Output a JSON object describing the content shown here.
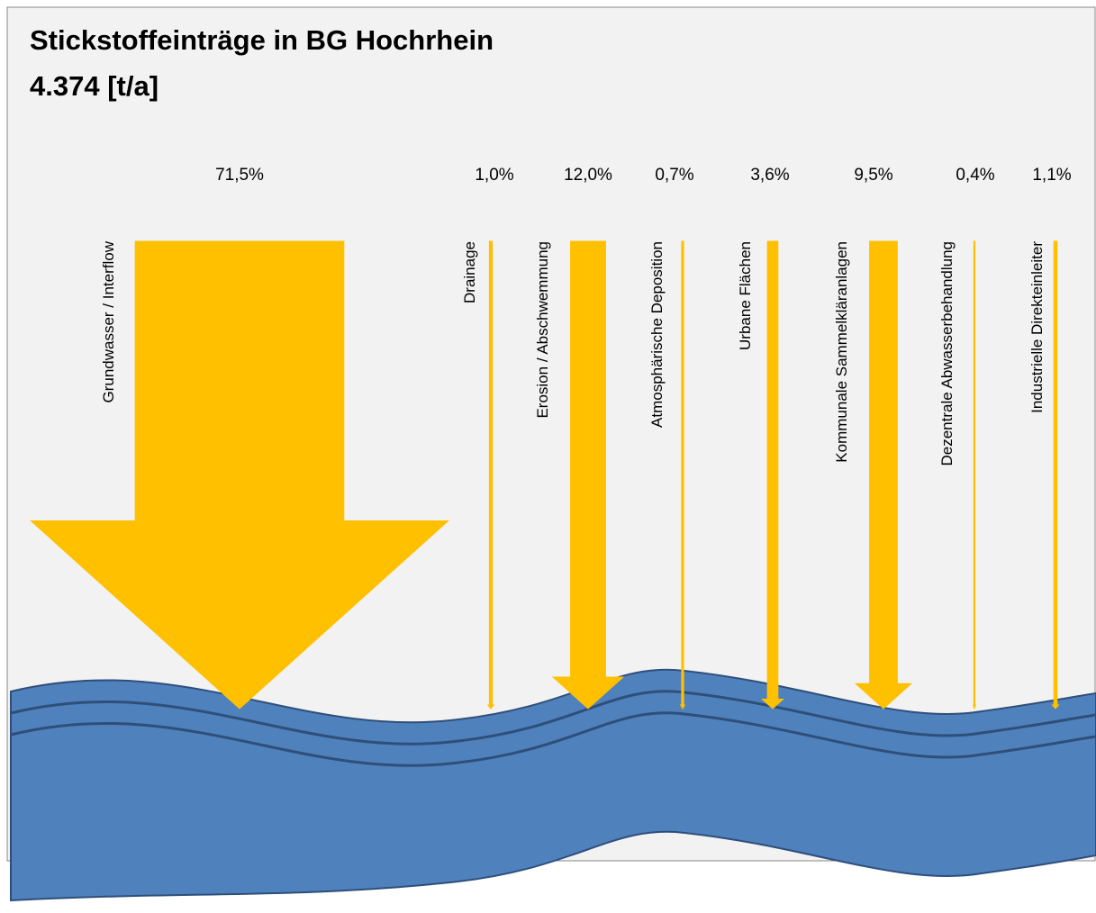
{
  "chart_data": {
    "type": "arrow",
    "title": "Stickstoffeinträge in BG Hochrhein",
    "subtitle": "4.374 [t/a]",
    "color": "#ffc000",
    "categories": [
      "Grundwasser / Interflow",
      "Drainage",
      "Erosion / Abschwemmung",
      "Atmosphärische Deposition",
      "Urbane Flächen",
      "Kommunale Sammelkläranlagen",
      "Dezentrale Abwasserbehandlung",
      "Industrielle Direkteinleiter"
    ],
    "values": [
      71.5,
      1.0,
      12.0,
      0.7,
      3.6,
      9.5,
      0.4,
      1.1
    ],
    "value_labels": [
      "71,5%",
      "1,0%",
      "12,0%",
      "0,7%",
      "3,6%",
      "9,5%",
      "0,4%",
      "1,1%"
    ]
  }
}
